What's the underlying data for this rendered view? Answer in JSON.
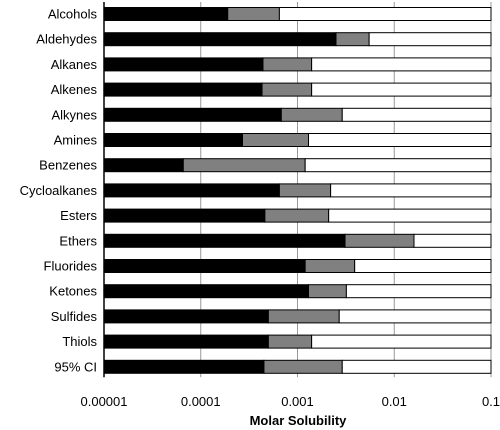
{
  "chart_data": {
    "type": "bar",
    "orientation": "horizontal",
    "stacked": true,
    "x_scale": "log",
    "xlim": [
      1e-05,
      0.1
    ],
    "xlabel": "Molar Solubility",
    "ylabel": "",
    "title": "",
    "grid": "vertical",
    "legend": "none",
    "x_ticks": [
      1e-05,
      0.0001,
      0.001,
      0.01,
      0.1
    ],
    "x_tick_labels": [
      "0.00001",
      "0.0001",
      "0.001",
      "0.01",
      "0.1"
    ],
    "categories": [
      "Alcohols",
      "Aldehydes",
      "Alkanes",
      "Alkenes",
      "Alkynes",
      "Amines",
      "Benzenes",
      "Cycloalkanes",
      "Esters",
      "Ethers",
      "Fluorides",
      "Ketones",
      "Sulfides",
      "Thiols",
      "95% CI"
    ],
    "series": [
      {
        "color": "#000000",
        "end_values": [
          0.00019,
          0.0025,
          0.00044,
          0.00043,
          0.00068,
          0.00027,
          6.6e-05,
          0.00065,
          0.00046,
          0.0031,
          0.0012,
          0.0013,
          0.0005,
          0.0005,
          0.00045
        ]
      },
      {
        "color": "#808080",
        "end_values": [
          0.00065,
          0.0055,
          0.0014,
          0.0014,
          0.0029,
          0.0013,
          0.0012,
          0.0022,
          0.0021,
          0.016,
          0.0039,
          0.0032,
          0.0027,
          0.0014,
          0.0029
        ]
      },
      {
        "color": "#ffffff",
        "end_values": [
          0.1,
          0.1,
          0.1,
          0.1,
          0.1,
          0.1,
          0.1,
          0.1,
          0.1,
          0.1,
          0.1,
          0.1,
          0.1,
          0.1,
          0.1
        ]
      }
    ]
  }
}
